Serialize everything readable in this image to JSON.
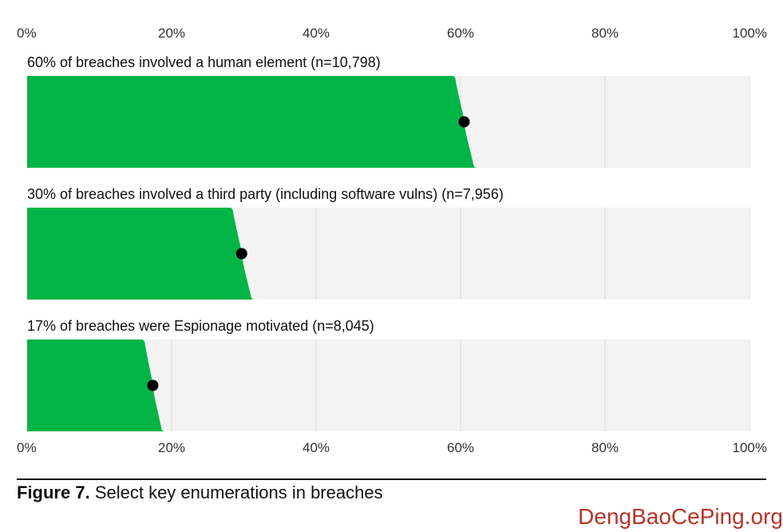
{
  "chart_data": {
    "type": "bar",
    "orientation": "horizontal",
    "categories": [
      "60% of breaches involved a human element (n=10,798)",
      "30% of breaches involved a third party (including software vulns) (n=7,956)",
      "17% of breaches were Espionage motivated (n=8,045)"
    ],
    "values": [
      60.5,
      29.7,
      17.4
    ],
    "interval_high": [
      61.8,
      31.0,
      18.6
    ],
    "interval_low": [
      59.3,
      28.5,
      16.3
    ],
    "xlim": [
      0,
      100
    ],
    "xticks": [
      "0%",
      "20%",
      "40%",
      "60%",
      "80%",
      "100%"
    ],
    "xtick_values": [
      0,
      20,
      40,
      60,
      80,
      100
    ],
    "grid": true,
    "ticks_top_and_bottom": true,
    "colors": {
      "bar": "#00b545",
      "track": "#f3f3f3",
      "grid": "#dcdcdc",
      "point": "#000000"
    }
  },
  "caption": {
    "prefix": "Figure 7.",
    "text": "Select key enumerations in breaches"
  },
  "watermark": {
    "text": "DengBaoCePing.org",
    "color": "#b5352a"
  }
}
